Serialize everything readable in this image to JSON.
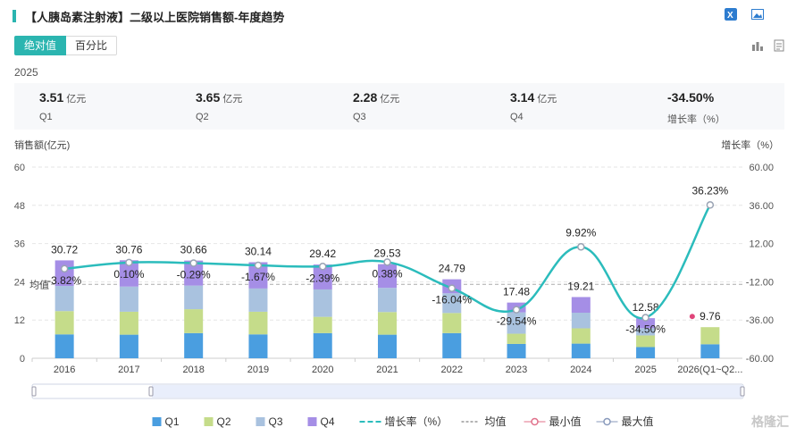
{
  "header": {
    "title": "【人胰岛素注射液】二级以上医院销售额-年度趋势"
  },
  "top_icons": [
    "excel-icon",
    "image-icon"
  ],
  "tabs": [
    {
      "label": "绝对值",
      "active": true
    },
    {
      "label": "百分比",
      "active": false
    }
  ],
  "view_icons": [
    "bar-chart-icon",
    "document-icon"
  ],
  "year_label": "2025",
  "stats": [
    {
      "value": "3.51",
      "unit": "亿元",
      "label": "Q1"
    },
    {
      "value": "3.65",
      "unit": "亿元",
      "label": "Q2"
    },
    {
      "value": "2.28",
      "unit": "亿元",
      "label": "Q3"
    },
    {
      "value": "3.14",
      "unit": "亿元",
      "label": "Q4"
    },
    {
      "value": "-34.50%",
      "unit": "",
      "label": "增长率（%）"
    }
  ],
  "chart_data": {
    "type": "bar",
    "stacked": true,
    "categories": [
      "2016",
      "2017",
      "2018",
      "2019",
      "2020",
      "2021",
      "2022",
      "2023",
      "2024",
      "2025",
      "2026(Q1~Q2..."
    ],
    "ylabel": "销售额(亿元)",
    "y2label": "增长率（%）",
    "ylim": [
      0,
      60
    ],
    "yticks": [
      0,
      12,
      24,
      36,
      48,
      60
    ],
    "y2lim": [
      -60,
      60
    ],
    "y2ticks": [
      "-60.00",
      "-36.00",
      "-12.00",
      "12.00",
      "36.00",
      "60.00"
    ],
    "series": [
      {
        "name": "Q1",
        "color": "#4a9ee0",
        "values": [
          7.5,
          7.4,
          7.9,
          7.5,
          7.9,
          7.4,
          7.9,
          4.5,
          4.6,
          3.51,
          4.4
        ]
      },
      {
        "name": "Q2",
        "color": "#c5dc8a",
        "values": [
          7.3,
          7.2,
          7.5,
          7.1,
          5.1,
          7.1,
          6.3,
          3.2,
          4.8,
          3.65,
          5.36
        ]
      },
      {
        "name": "Q3",
        "color": "#a9c2df",
        "values": [
          7.9,
          7.9,
          7.4,
          7.3,
          8.6,
          7.6,
          6.2,
          6.7,
          4.9,
          2.28,
          0
        ]
      },
      {
        "name": "Q4",
        "color": "#a58ee6",
        "values": [
          8.02,
          8.26,
          7.86,
          8.24,
          7.82,
          7.43,
          4.39,
          3.08,
          4.91,
          3.14,
          0
        ]
      }
    ],
    "totals": [
      "30.72",
      "30.76",
      "30.66",
      "30.14",
      "29.42",
      "29.53",
      "24.79",
      "17.48",
      "19.21",
      "12.58",
      "9.76"
    ],
    "growth": {
      "name": "增长率（%）",
      "color": "#2bbcbc",
      "values": [
        -3.82,
        0.1,
        -0.29,
        -1.67,
        -2.39,
        0.38,
        -16.04,
        -29.54,
        9.92,
        -34.5,
        36.23
      ],
      "labels": [
        "-3.82%",
        "0.10%",
        "-0.29%",
        "-1.67%",
        "-2.39%",
        "0.38%",
        "-16.04%",
        "-29.54%",
        "9.92%",
        "-34.50%",
        "36.23%"
      ]
    },
    "mean": {
      "name": "均值",
      "label": "均值",
      "value": 23.2
    },
    "legend": {
      "position": "bottom",
      "items": [
        {
          "name": "Q1",
          "kind": "box",
          "color": "#4a9ee0"
        },
        {
          "name": "Q2",
          "kind": "box",
          "color": "#c5dc8a"
        },
        {
          "name": "Q3",
          "kind": "box",
          "color": "#a9c2df"
        },
        {
          "name": "Q4",
          "kind": "box",
          "color": "#a58ee6"
        },
        {
          "name": "增长率（%）",
          "kind": "line",
          "color": "#2bbcbc"
        },
        {
          "name": "均值",
          "kind": "dash",
          "color": "#999999"
        },
        {
          "name": "最小值",
          "kind": "circle",
          "color": "#e0708a"
        },
        {
          "name": "最大值",
          "kind": "circle",
          "color": "#8899bb"
        }
      ]
    }
  },
  "watermark": "格隆汇"
}
